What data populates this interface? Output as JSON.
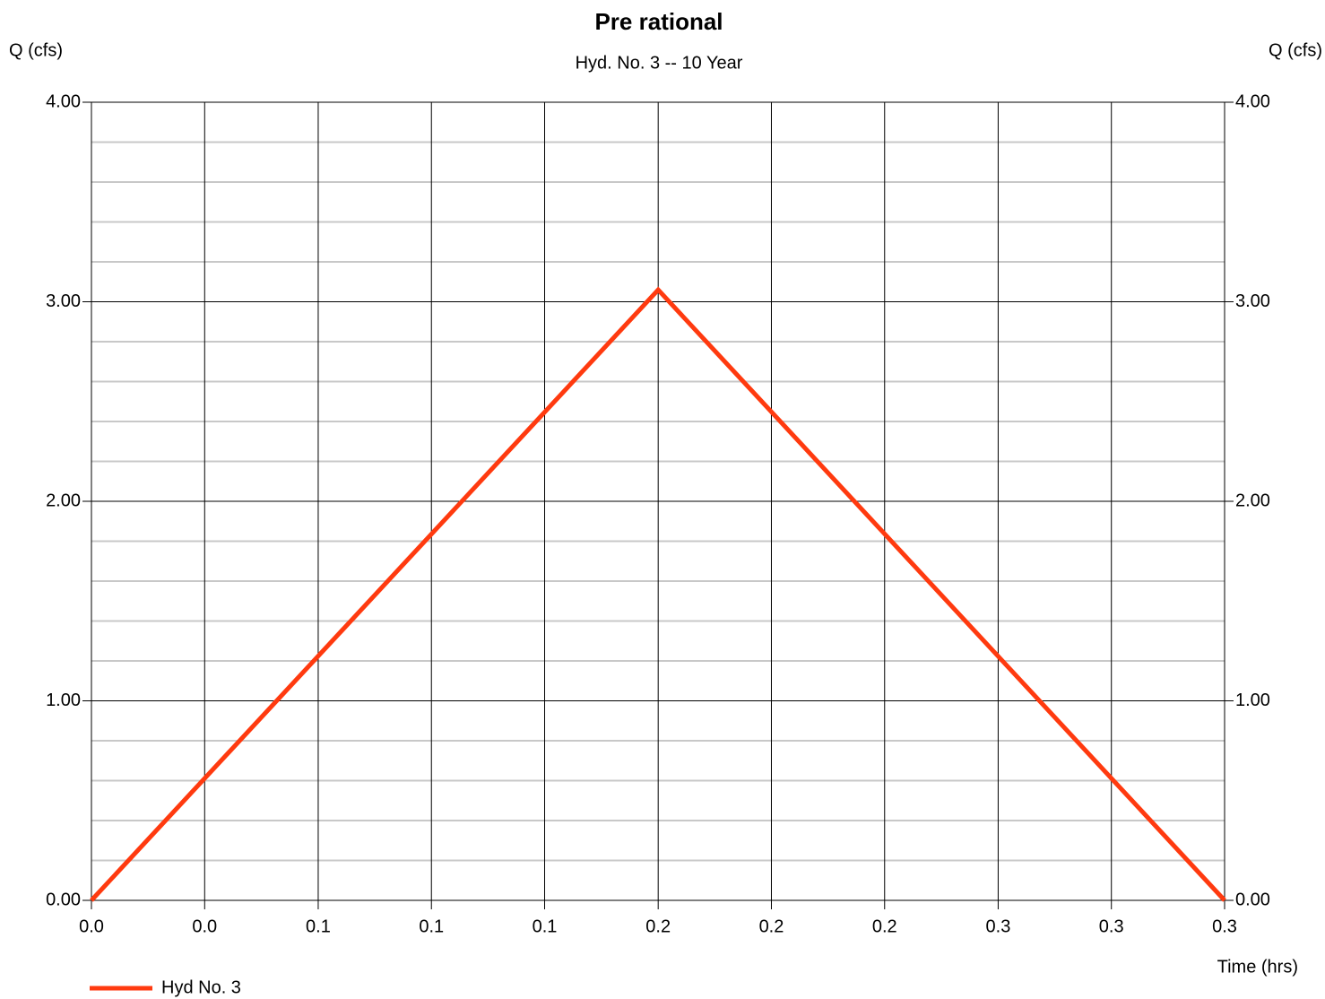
{
  "chart_data": {
    "type": "line",
    "title": "Pre rational",
    "subtitle": "Hyd. No. 3 -- 10 Year",
    "y_label": "Q (cfs)",
    "y2_label": "Q (cfs)",
    "x_label": "Time (hrs)",
    "x": [
      0,
      0.1667,
      0.3333
    ],
    "series": [
      {
        "name": "Hyd No. 3",
        "color": "#ff3a0f",
        "values": [
          0,
          3.06,
          0
        ]
      }
    ],
    "xlim": [
      0,
      0.3333
    ],
    "xticks": [
      {
        "value": 0,
        "label": "0.0"
      },
      {
        "value": 0.0333,
        "label": "0.0"
      },
      {
        "value": 0.0667,
        "label": "0.1"
      },
      {
        "value": 0.1,
        "label": "0.1"
      },
      {
        "value": 0.1333,
        "label": "0.1"
      },
      {
        "value": 0.1667,
        "label": "0.2"
      },
      {
        "value": 0.2,
        "label": "0.2"
      },
      {
        "value": 0.2333,
        "label": "0.2"
      },
      {
        "value": 0.2667,
        "label": "0.3"
      },
      {
        "value": 0.3,
        "label": "0.3"
      },
      {
        "value": 0.3333,
        "label": "0.3"
      }
    ],
    "ylim": [
      0,
      4
    ],
    "yticks": [
      {
        "value": 0,
        "label": "0.00"
      },
      {
        "value": 1,
        "label": "1.00"
      },
      {
        "value": 2,
        "label": "2.00"
      },
      {
        "value": 3,
        "label": "3.00"
      },
      {
        "value": 4,
        "label": "4.00"
      }
    ],
    "y2lim": [
      0,
      4
    ],
    "y2ticks": [
      {
        "value": 0,
        "label": "0.00"
      },
      {
        "value": 1,
        "label": "1.00"
      },
      {
        "value": 2,
        "label": "2.00"
      },
      {
        "value": 3,
        "label": "3.00"
      },
      {
        "value": 4,
        "label": "4.00"
      }
    ],
    "y_minor_ticks": [
      0.2,
      0.4,
      0.6,
      0.8,
      1.2,
      1.4,
      1.6,
      1.8,
      2.2,
      2.4,
      2.6,
      2.8,
      3.2,
      3.4,
      3.6,
      3.8
    ],
    "grid": true,
    "legend": "bottom-left"
  }
}
